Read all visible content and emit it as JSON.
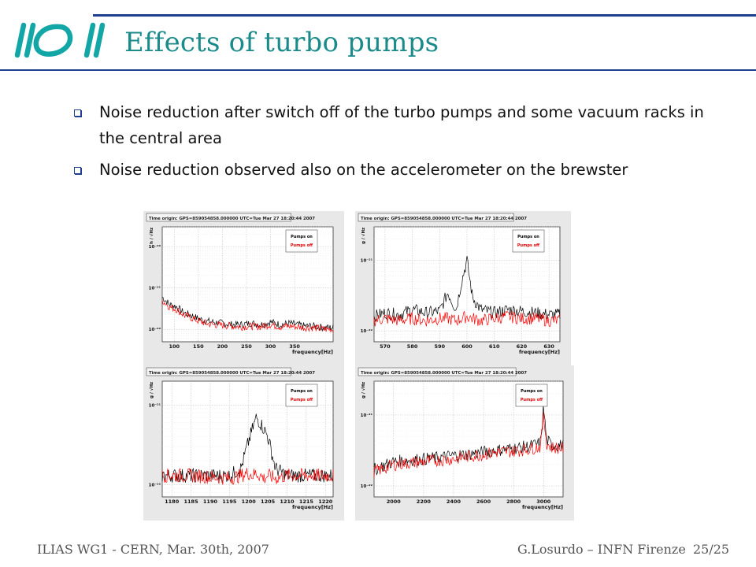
{
  "slide": {
    "title": "Effects of turbo pumps",
    "bullets": [
      "Noise reduction after switch off of the turbo pumps and some vacuum racks in the central area",
      "Noise reduction observed also on the accelerometer on the brewster"
    ],
    "footer_left": "ILIAS WG1 - CERN, Mar. 30th, 2007",
    "footer_right": "G.Losurdo – INFN Firenze",
    "page": "25/25"
  },
  "colors": {
    "title": "#1a8a8a",
    "rule": "#1f3f8f",
    "pumps_on": "#000000",
    "pumps_off": "#ff0000"
  },
  "chart_data": [
    {
      "type": "line",
      "header": "Time origin: GPS=859054858.000000 UTC=Tue Mar 27 18:20:44 2007",
      "xlabel": "frequency[Hz]",
      "ylabel": "h / √Hz",
      "xlim": [
        75,
        430
      ],
      "ylim": [
        5e-23,
        3e-20
      ],
      "log_y": true,
      "xticks": [
        100,
        150,
        200,
        250,
        300,
        350
      ],
      "yticks": [
        {
          "v": 1e-20,
          "label": "10⁻²⁰"
        },
        {
          "v": 1e-21,
          "label": "10⁻²¹"
        },
        {
          "v": 1e-22,
          "label": "10⁻²²"
        }
      ],
      "legend": [
        "Pumps on",
        "Pumps off"
      ],
      "series": [
        {
          "color_key": "pumps_on",
          "x": [
            75,
            90,
            105,
            120,
            135,
            150,
            165,
            180,
            200,
            220,
            240,
            260,
            280,
            300,
            320,
            340,
            355,
            370,
            390,
            410,
            430
          ],
          "y": [
            6e-22,
            4e-22,
            3.5e-22,
            2.5e-22,
            2.2e-22,
            1.8e-22,
            1.6e-22,
            1.5e-22,
            1.4e-22,
            1.3e-22,
            1.3e-22,
            1.4e-22,
            1.3e-22,
            1.5e-22,
            1.3e-22,
            1.4e-22,
            1.3e-22,
            1.2e-22,
            1.2e-22,
            1.1e-22,
            1.1e-22
          ]
        },
        {
          "color_key": "pumps_off",
          "x": [
            75,
            90,
            105,
            120,
            135,
            150,
            165,
            180,
            200,
            220,
            240,
            260,
            280,
            300,
            320,
            340,
            355,
            370,
            390,
            410,
            430
          ],
          "y": [
            5e-22,
            3.5e-22,
            3e-22,
            2.2e-22,
            1.9e-22,
            1.6e-22,
            1.4e-22,
            1.3e-22,
            1.25e-22,
            1.2e-22,
            1.15e-22,
            1.2e-22,
            1.15e-22,
            1.3e-22,
            1.15e-22,
            1.2e-22,
            1.15e-22,
            1.1e-22,
            1.1e-22,
            1e-22,
            1e-22
          ]
        }
      ]
    },
    {
      "type": "line",
      "header": "Time origin: GPS=859054858.000000 UTC=Tue Mar 27 18:20:44 2007",
      "xlabel": "frequency[Hz]",
      "ylabel": "g / √Hz",
      "xlim": [
        566,
        634
      ],
      "ylim": [
        7e-23,
        3e-21
      ],
      "log_y": true,
      "xticks": [
        570,
        580,
        590,
        600,
        610,
        620,
        630
      ],
      "yticks": [
        {
          "v": 1e-21,
          "label": "10⁻²¹"
        },
        {
          "v": 1e-22,
          "label": "10⁻²²"
        }
      ],
      "legend": [
        "Pumps on",
        "Pumps off"
      ],
      "series": [
        {
          "color_key": "pumps_on",
          "x": [
            566,
            570,
            575,
            580,
            585,
            590,
            593,
            596,
            598,
            600,
            602,
            605,
            610,
            615,
            620,
            625,
            630,
            634
          ],
          "y": [
            1.6e-22,
            1.8e-22,
            1.7e-22,
            2e-22,
            1.8e-22,
            1.9e-22,
            3.5e-22,
            2e-22,
            5e-22,
            1e-21,
            3e-22,
            2e-22,
            1.8e-22,
            2e-22,
            1.9e-22,
            1.8e-22,
            1.7e-22,
            1.7e-22
          ]
        },
        {
          "color_key": "pumps_off",
          "x": [
            566,
            570,
            575,
            580,
            585,
            590,
            593,
            596,
            598,
            600,
            602,
            605,
            610,
            615,
            620,
            625,
            630,
            634
          ],
          "y": [
            1.4e-22,
            1.5e-22,
            1.4e-22,
            1.5e-22,
            1.4e-22,
            1.5e-22,
            1.5e-22,
            1.4e-22,
            1.5e-22,
            1.6e-22,
            1.5e-22,
            1.4e-22,
            1.5e-22,
            1.6e-22,
            1.5e-22,
            1.5e-22,
            1.4e-22,
            1.4e-22
          ]
        }
      ]
    },
    {
      "type": "line",
      "header": "Time origin: GPS=859054858.000000 UTC=Tue Mar 27 18:20:44 2007",
      "xlabel": "frequency[Hz]",
      "ylabel": "g / √Hz",
      "xlim": [
        1177.5,
        1222
      ],
      "ylim": [
        7e-23,
        2e-21
      ],
      "log_y": true,
      "xticks": [
        1180,
        1185,
        1190,
        1195,
        1200,
        1205,
        1210,
        1215,
        1220
      ],
      "yticks": [
        {
          "v": 1e-21,
          "label": "10⁻²¹"
        },
        {
          "v": 1e-22,
          "label": "10⁻²²"
        }
      ],
      "legend": [
        "Pumps on",
        "Pumps off"
      ],
      "series": [
        {
          "color_key": "pumps_on",
          "x": [
            1177.5,
            1185,
            1195,
            1198,
            1200,
            1201,
            1202,
            1203,
            1204,
            1205,
            1207,
            1210,
            1215,
            1222
          ],
          "y": [
            1.3e-22,
            1.3e-22,
            1.3e-22,
            1.6e-22,
            3.5e-22,
            5e-22,
            7e-22,
            6e-22,
            5e-22,
            4e-22,
            1.6e-22,
            1.3e-22,
            1.3e-22,
            1.3e-22
          ]
        },
        {
          "color_key": "pumps_off",
          "x": [
            1177.5,
            1185,
            1195,
            1198,
            1200,
            1201,
            1202,
            1203,
            1204,
            1205,
            1207,
            1210,
            1215,
            1222
          ],
          "y": [
            1.3e-22,
            1.3e-22,
            1.2e-22,
            1.3e-22,
            1.4e-22,
            1.3e-22,
            1.4e-22,
            1.3e-22,
            1.2e-22,
            1.3e-22,
            1.2e-22,
            1.3e-22,
            1.3e-22,
            1.3e-22
          ]
        }
      ]
    },
    {
      "type": "line",
      "header": "Time origin: GPS=859054858.000000 UTC=Tue Mar 27 18:20:44 2007",
      "xlabel": "frequency[Hz]",
      "ylabel": "g / √Hz",
      "xlim": [
        1870,
        3130
      ],
      "ylim": [
        7e-23,
        3e-21
      ],
      "log_y": true,
      "xticks": [
        2000,
        2200,
        2400,
        2600,
        2800,
        3000
      ],
      "yticks": [
        {
          "v": 1e-21,
          "label": "10⁻²¹"
        },
        {
          "v": 1e-22,
          "label": "10⁻²²"
        }
      ],
      "legend": [
        "Pumps on",
        "Pumps off"
      ],
      "series": [
        {
          "color_key": "pumps_on",
          "x": [
            1870,
            1950,
            2000,
            2100,
            2200,
            2300,
            2400,
            2500,
            2600,
            2700,
            2800,
            2900,
            2980,
            3000,
            3020,
            3050,
            3130
          ],
          "y": [
            1.7e-22,
            2e-22,
            2.2e-22,
            2.3e-22,
            2.4e-22,
            2.5e-22,
            2.7e-22,
            2.8e-22,
            3e-22,
            3.2e-22,
            3.4e-22,
            3.6e-22,
            4e-22,
            1.3e-21,
            4.5e-22,
            3.8e-22,
            3.7e-22
          ]
        },
        {
          "color_key": "pumps_off",
          "x": [
            1870,
            1950,
            2000,
            2100,
            2200,
            2300,
            2400,
            2500,
            2600,
            2700,
            2800,
            2900,
            2980,
            3000,
            3020,
            3050,
            3130
          ],
          "y": [
            1.6e-22,
            1.8e-22,
            2e-22,
            2.1e-22,
            2.2e-22,
            2.3e-22,
            2.4e-22,
            2.6e-22,
            2.8e-22,
            3e-22,
            3.1e-22,
            3.3e-22,
            3.6e-22,
            1e-21,
            4e-22,
            3.5e-22,
            3.4e-22
          ]
        }
      ]
    }
  ]
}
